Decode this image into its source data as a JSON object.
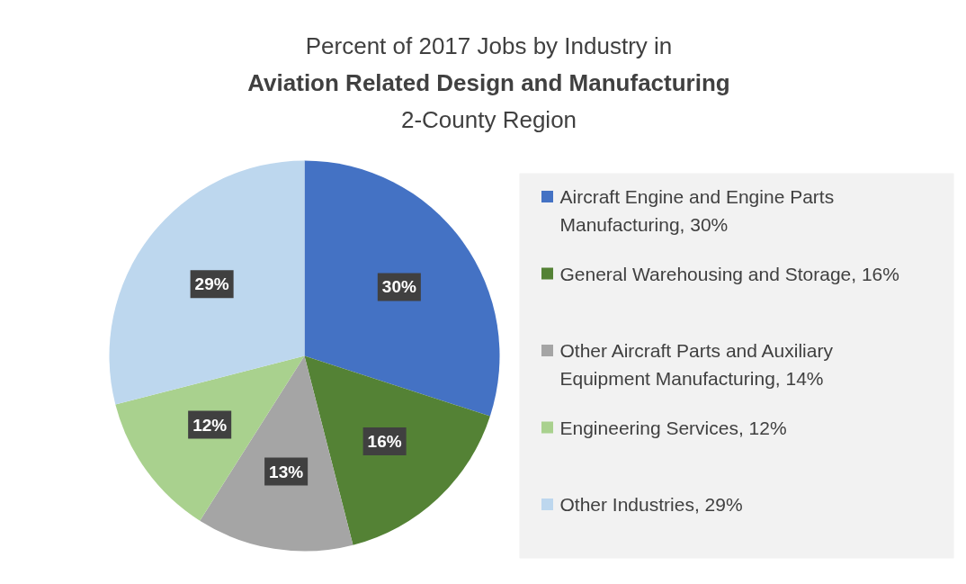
{
  "chart_data": {
    "type": "pie",
    "title": "Percent of 2017 Jobs by Industry in\nAviation Related Design and Manufacturing",
    "subtitle": "2-County Region",
    "categories": [
      "Aircraft Engine and Engine Parts Manufacturing, 30%",
      "General Warehousing and Storage, 16%",
      "Other Aircraft Parts and Auxiliary Equipment Manufacturing, 14%",
      "Engineering Services, 12%",
      "Other Industries, 29%"
    ],
    "values": [
      30,
      16,
      13,
      12,
      29
    ],
    "colors": [
      "#4472c4",
      "#548235",
      "#a5a5a5",
      "#a9d18e",
      "#bdd7ee"
    ],
    "value_labels": [
      "30%",
      "16%",
      "13%",
      "12%",
      "29%"
    ],
    "legend": "right"
  }
}
